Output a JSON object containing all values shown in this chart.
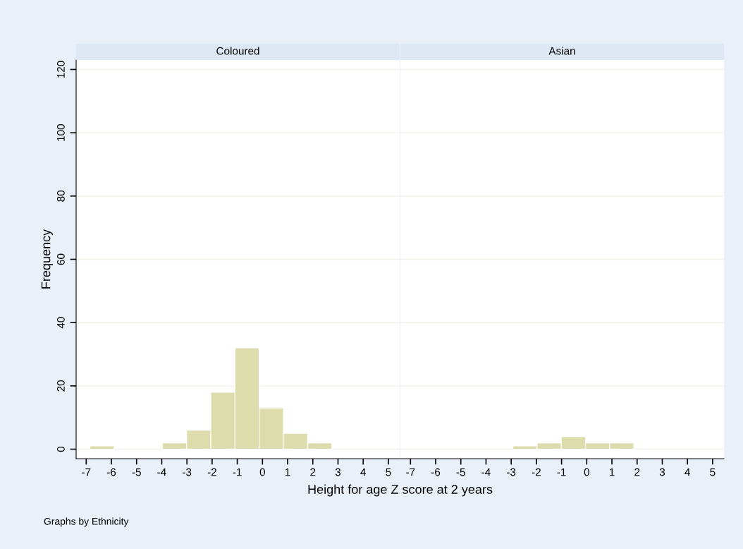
{
  "chart_data": [
    {
      "type": "histogram",
      "title": "Coloured",
      "xlabel": "Height for age Z score at 2 years",
      "ylabel": "Frequency",
      "bins": [
        -6.85,
        -5.89,
        -4.93,
        -3.97,
        -3.01,
        -2.05,
        -1.09,
        -0.13,
        0.83,
        1.79,
        2.75
      ],
      "values": [
        1,
        0,
        0,
        2,
        6,
        18,
        32,
        13,
        5,
        2
      ],
      "color": "#dcdcac",
      "xlim": [
        -7.4,
        5.45
      ],
      "xticks": [
        {
          "value": -7,
          "label": "-7"
        },
        {
          "value": -6,
          "label": "-6"
        },
        {
          "value": -5,
          "label": "-5"
        },
        {
          "value": -4,
          "label": "-4"
        },
        {
          "value": -3,
          "label": "-3"
        },
        {
          "value": -2,
          "label": "-2"
        },
        {
          "value": -1,
          "label": "-1"
        },
        0,
        1,
        2,
        3,
        4,
        5
      ],
      "ylim": [
        -3,
        123
      ],
      "yticks": [
        0,
        20,
        40,
        60,
        80,
        100,
        120
      ],
      "grid": "y",
      "annotations": [
        "Graphs by Ethnicity"
      ]
    },
    {
      "type": "histogram",
      "title": "Asian",
      "bins": [
        -2.93,
        -1.97,
        -1.01,
        -0.05,
        0.91,
        1.87
      ],
      "values": [
        1,
        2,
        4,
        2,
        2
      ],
      "color": "#dcdcac",
      "xlim": [
        -7.4,
        5.45
      ],
      "xticks": [
        {
          "value": -7,
          "label": "-7"
        },
        {
          "value": -6,
          "label": "-6"
        },
        {
          "value": -5,
          "label": "-5"
        },
        {
          "value": -4,
          "label": "-4"
        },
        {
          "value": -3,
          "label": "-3"
        },
        {
          "value": -2,
          "label": "-2"
        },
        {
          "value": -1,
          "label": "-1"
        },
        0,
        1,
        2,
        3,
        4,
        5
      ],
      "ylim": [
        -3,
        123
      ],
      "yticks": [
        0,
        20,
        40,
        60,
        80,
        100,
        120
      ],
      "grid": "y",
      "tick_labels": "x"
    }
  ]
}
